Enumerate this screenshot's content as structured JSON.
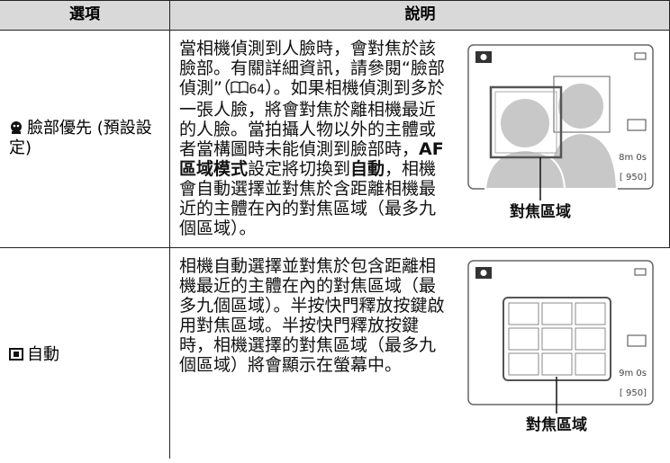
{
  "table": {
    "header": [
      "選項",
      "說明"
    ],
    "rows": [
      {
        "option": "臉部優先 (預設設定)",
        "description": [
          {
            "text": "當相機偵測到人臉時，會對焦於該臉部。有關詳細資訊，請參閱“臉部偵測”（"
          },
          {
            "text": "64",
            "ref": true
          },
          {
            "text": "）。如果相機偵測到多於一張人臉，將會對焦於離相機最近的人臉。當拍攝人物以外的主體或者當構圖時未能偵測到臉部時，"
          },
          {
            "text": "AF 區域模式",
            "bold": true
          },
          {
            "text": "設定將切換到"
          },
          {
            "text": "自動",
            "bold": true
          },
          {
            "text": "，相機會自動選擇並對焦於含距離相機最近的主體在內的對焦區域（最多九個區域）。"
          }
        ],
        "screen": {
          "label": "對焦區域",
          "texts": [
            "8m 0s",
            "[ 950]"
          ]
        }
      },
      {
        "option": "自動",
        "description": [
          {
            "text": "相機自動選擇並對焦於包含距離相機最近的主體在內的對焦區域（最多九個區域）。半按快門釋放按鍵啟用對焦區域。半按快門釋放按鍵時，相機選擇的對焦區域（最多九個區域）將會顯示在螢幕中。"
          }
        ],
        "screen": {
          "label": "對焦區域",
          "texts": [
            "9m 0s",
            "[ 950]"
          ]
        }
      }
    ]
  }
}
